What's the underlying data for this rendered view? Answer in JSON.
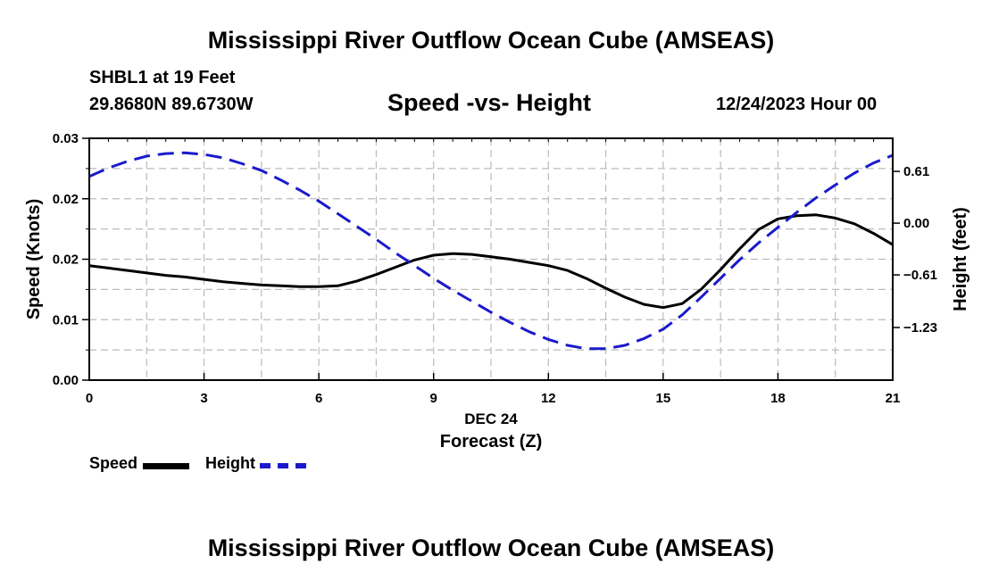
{
  "header": {
    "title": "Mississippi River Outflow Ocean Cube (AMSEAS)",
    "station": "SHBL1 at 19 Feet",
    "coords": "29.8680N  89.6730W",
    "subtitle": "Speed -vs- Height",
    "datetime": "12/24/2023 Hour 00"
  },
  "footer": {
    "title": "Mississippi River Outflow Ocean Cube (AMSEAS)"
  },
  "legend": {
    "speed_label": "Speed",
    "height_label": "Height"
  },
  "colors": {
    "speed": "#000000",
    "height": "#1a1acc",
    "grid": "#bbbbbb"
  },
  "chart_data": {
    "type": "line",
    "title": "Speed -vs- Height",
    "xlabel": "Forecast (Z)",
    "xsublabel": "DEC 24",
    "xlim": [
      0,
      21
    ],
    "xticks": [
      0,
      3,
      6,
      9,
      12,
      15,
      18,
      21
    ],
    "xtick_labels": [
      "0",
      "3",
      "6",
      "9",
      "12",
      "15",
      "18",
      "21"
    ],
    "ylabel_left": "Speed (Knots)",
    "ylim_left": [
      0,
      0.03
    ],
    "yticks_left": [
      0,
      0.0075,
      0.015,
      0.0225,
      0.03
    ],
    "ytick_labels_left": [
      "0.00",
      "0.01",
      "0.02",
      "0.02",
      "0.03"
    ],
    "ylabel_right": "Height (feet)",
    "ylim_right": [
      -1.85,
      1.0
    ],
    "yticks_right": [
      -1.23,
      -0.61,
      0.0,
      0.61
    ],
    "ytick_labels_right": [
      "−1.23",
      "−0.61",
      "0.00",
      "0.61"
    ],
    "grid": true,
    "series": [
      {
        "name": "Speed",
        "axis": "left",
        "style": "solid",
        "x": [
          0,
          0.5,
          1,
          1.5,
          2,
          2.5,
          3,
          3.5,
          4,
          4.5,
          5,
          5.5,
          6,
          6.5,
          7,
          7.5,
          8,
          8.5,
          9,
          9.5,
          10,
          10.5,
          11,
          11.5,
          12,
          12.5,
          13,
          13.5,
          14,
          14.5,
          15,
          15.5,
          16,
          16.5,
          17,
          17.5,
          18,
          18.5,
          19,
          19.5,
          20,
          20.5,
          21
        ],
        "values": [
          0.0142,
          0.0139,
          0.0136,
          0.0133,
          0.013,
          0.0128,
          0.0125,
          0.0122,
          0.012,
          0.0118,
          0.0117,
          0.0116,
          0.0116,
          0.0117,
          0.0123,
          0.0131,
          0.014,
          0.0149,
          0.0155,
          0.0157,
          0.0156,
          0.0153,
          0.015,
          0.0146,
          0.0142,
          0.0136,
          0.0126,
          0.0114,
          0.0103,
          0.0094,
          0.009,
          0.0095,
          0.0113,
          0.0137,
          0.0163,
          0.0187,
          0.02,
          0.0204,
          0.0205,
          0.0201,
          0.0194,
          0.0182,
          0.0168
        ]
      },
      {
        "name": "Height",
        "axis": "right",
        "style": "dashed",
        "x": [
          0,
          0.5,
          1,
          1.5,
          2,
          2.5,
          3,
          3.5,
          4,
          4.5,
          5,
          5.5,
          6,
          6.5,
          7,
          7.5,
          8,
          8.5,
          9,
          9.5,
          10,
          10.5,
          11,
          11.5,
          12,
          12.5,
          13,
          13.5,
          14,
          14.5,
          15,
          15.5,
          16,
          16.5,
          17,
          17.5,
          18,
          18.5,
          19,
          19.5,
          20,
          20.5,
          21
        ],
        "values": [
          0.55,
          0.65,
          0.73,
          0.79,
          0.82,
          0.83,
          0.81,
          0.77,
          0.7,
          0.62,
          0.51,
          0.39,
          0.26,
          0.11,
          -0.04,
          -0.19,
          -0.35,
          -0.5,
          -0.65,
          -0.79,
          -0.92,
          -1.05,
          -1.17,
          -1.28,
          -1.37,
          -1.44,
          -1.48,
          -1.48,
          -1.44,
          -1.36,
          -1.25,
          -1.08,
          -0.87,
          -0.65,
          -0.43,
          -0.23,
          -0.05,
          0.13,
          0.3,
          0.45,
          0.59,
          0.71,
          0.8
        ]
      }
    ]
  }
}
